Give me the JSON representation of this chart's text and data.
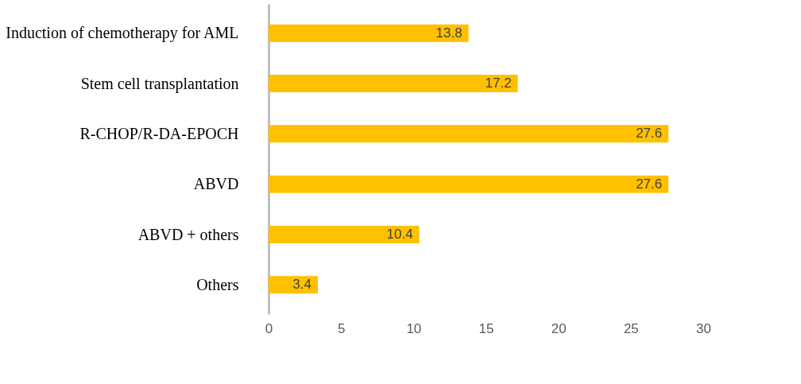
{
  "chart_data": {
    "type": "bar",
    "orientation": "horizontal",
    "categories": [
      "Induction of chemotherapy for AML",
      "Stem cell transplantation",
      "R-CHOP/R-DA-EPOCH",
      "ABVD",
      "ABVD + others",
      "Others"
    ],
    "values": [
      13.8,
      17.2,
      27.6,
      27.6,
      10.4,
      3.4
    ],
    "color": "#ffc000",
    "xlim": [
      0,
      30
    ],
    "xticks": [
      0,
      5,
      10,
      15,
      20,
      25,
      30
    ],
    "grid": false,
    "data_labels": true
  }
}
